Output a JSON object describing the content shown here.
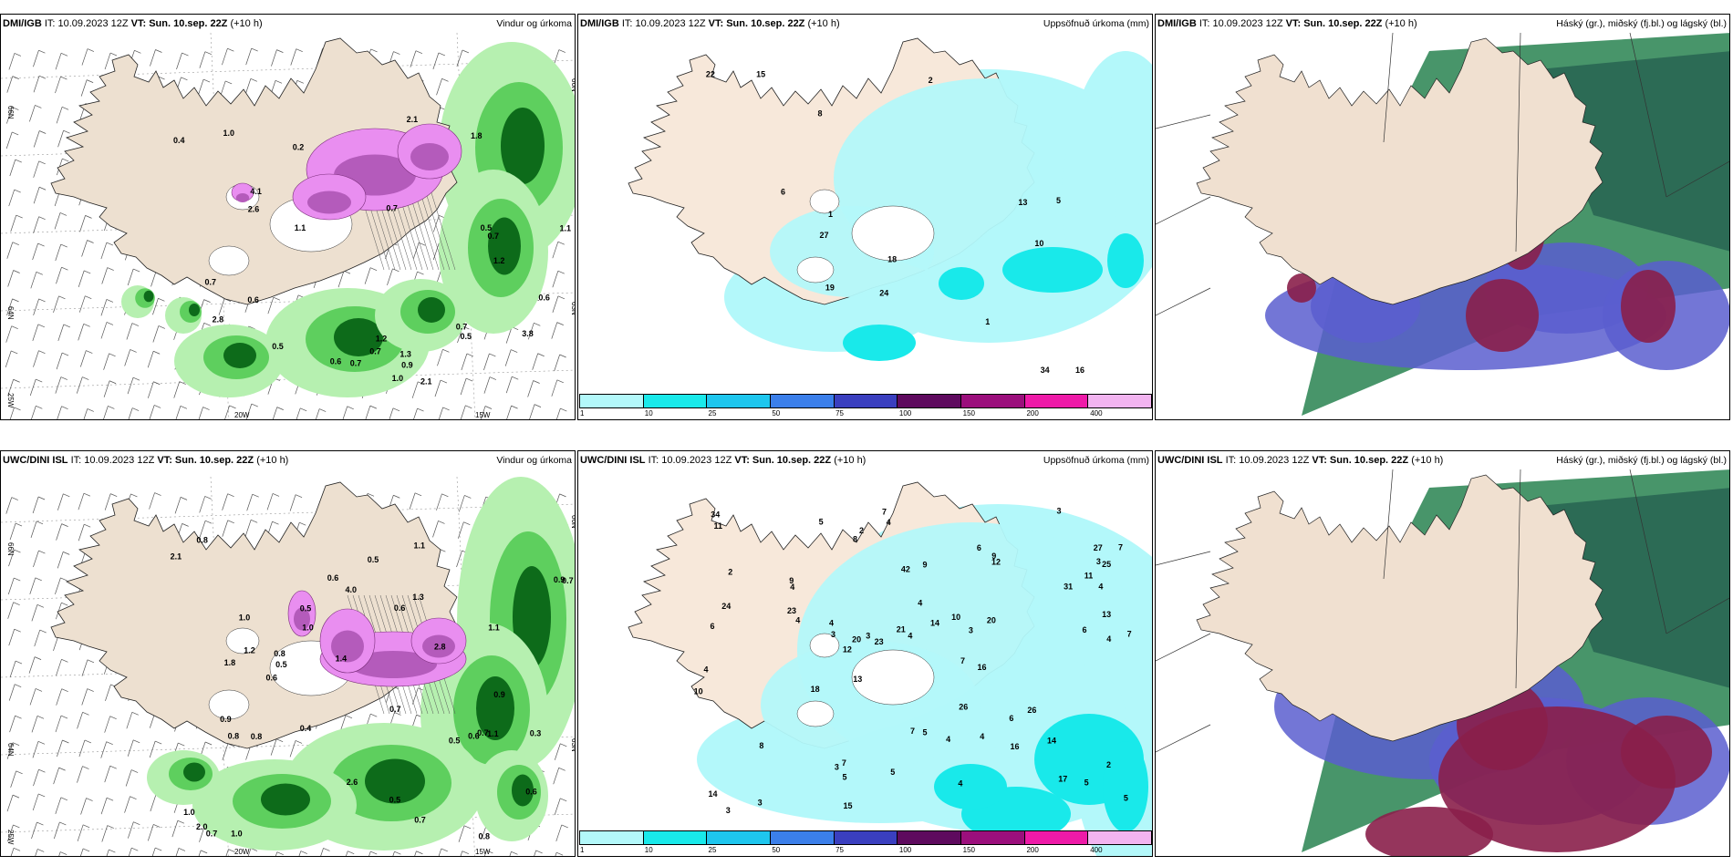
{
  "issue": "IT: 10.09.2023 12Z",
  "valid_prefix": "VT:",
  "valid_time": "Sun. 10.sep. 22Z",
  "lead": "(+10 h)",
  "rows": [
    {
      "model": "DMI/IGB"
    },
    {
      "model": "UWC/DINI ISL"
    }
  ],
  "titles": {
    "wind": "Vindur og úrkoma",
    "accum": "Uppsöfnuð úrkoma (mm)",
    "cloud": "Háský (gr.), miðský (fj.bl.) og lágský (bl.)"
  },
  "axis": {
    "lat_top": "66N",
    "lat_mid": "64N",
    "lat_low": "63N",
    "lon_left": "20W",
    "lon_right": "15W",
    "lat_bottom_left": "25W"
  },
  "colorbar": {
    "ticks": [
      "1",
      "10",
      "25",
      "50",
      "75",
      "100",
      "150",
      "200",
      "400"
    ],
    "colors": [
      "#b3f8fa",
      "#19e9ea",
      "#1ec6ee",
      "#3b7fea",
      "#3a3fbf",
      "#5e0a5e",
      "#9b0f7c",
      "#ee1aa8",
      "#f2b4f0"
    ]
  },
  "wind_labels": {
    "dmi": [
      "0.6",
      "1.2",
      "0.7",
      "0.4",
      "1.1",
      "2.8",
      "0.7",
      "0.7",
      "0.5",
      "4.1",
      "0.6",
      "3.8",
      "0.7",
      "2.1",
      "1.8",
      "0.9",
      "0.7",
      "0.5",
      "0.6",
      "0.7",
      "1.0",
      "1.2",
      "2.6",
      "1.1",
      "1.3",
      "0.5",
      "2.1",
      "1.0",
      "0.2"
    ],
    "uwc": [
      "0.6",
      "0.5",
      "0.4",
      "0.9",
      "1.2",
      "2.6",
      "1.1",
      "0.6",
      "0.5",
      "0.3",
      "1.8",
      "0.7",
      "0.8",
      "0.5",
      "2.0",
      "0.6",
      "1.3",
      "0.8",
      "1.0",
      "0.5",
      "0.7",
      "1.0",
      "0.8",
      "1.1",
      "0.7",
      "0.6",
      "2.8",
      "0.5",
      "0.7",
      "1.0",
      "0.9",
      "1.0",
      "0.8",
      "0.6",
      "1.1",
      "0.7",
      "1.4",
      "0.9",
      "4.0",
      "0.8",
      "2.1"
    ]
  },
  "accum_labels": {
    "dmi": [
      "18",
      "6",
      "15",
      "10",
      "16",
      "8",
      "24",
      "27",
      "19",
      "13",
      "5",
      "2",
      "22",
      "34",
      "1",
      "1"
    ],
    "uwc": [
      "3",
      "2",
      "5",
      "4",
      "6",
      "3",
      "7",
      "4",
      "3",
      "5",
      "10",
      "4",
      "3",
      "7",
      "4",
      "3",
      "2",
      "4",
      "6",
      "8",
      "7",
      "4",
      "5",
      "4",
      "7",
      "4",
      "3",
      "3",
      "6",
      "5",
      "4",
      "5",
      "9",
      "4",
      "4",
      "3",
      "12",
      "6",
      "8",
      "11",
      "16",
      "13",
      "7",
      "2",
      "4",
      "5",
      "13",
      "9",
      "14",
      "10",
      "14",
      "20",
      "16",
      "31",
      "42",
      "26",
      "27",
      "21",
      "23",
      "24",
      "20",
      "17",
      "12",
      "23",
      "26",
      "34",
      "14",
      "15",
      "9",
      "11",
      "25",
      "7",
      "18"
    ]
  }
}
